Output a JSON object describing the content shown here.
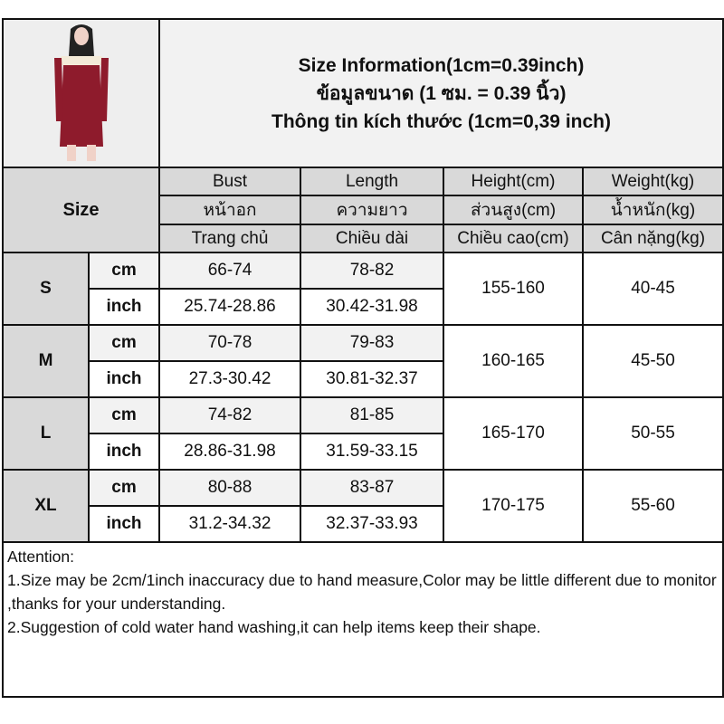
{
  "title_lines": [
    "Size Information(1cm=0.39inch)",
    "ข้อมูลขนาด (1 ซม. = 0.39 นิ้ว)",
    "Thông tin kích thước (1cm=0,39 inch)"
  ],
  "size_label": "Size",
  "columns": [
    {
      "en": "Bust",
      "th": "หน้าอก",
      "vi": "Trang chủ"
    },
    {
      "en": "Length",
      "th": "ความยาว",
      "vi": "Chiều dài"
    },
    {
      "en": "Height(cm)",
      "th": "ส่วนสูง(cm)",
      "vi": "Chiều cao(cm)"
    },
    {
      "en": "Weight(kg)",
      "th": "น้ำหนัก(kg)",
      "vi": "Cân nặng(kg)"
    }
  ],
  "units": {
    "cm": "cm",
    "inch": "inch"
  },
  "sizes": [
    {
      "size": "S",
      "bust_cm": "66-74",
      "length_cm": "78-82",
      "bust_in": "25.74-28.86",
      "length_in": "30.42-31.98",
      "height": "155-160",
      "weight": "40-45"
    },
    {
      "size": "M",
      "bust_cm": "70-78",
      "length_cm": "79-83",
      "bust_in": "27.3-30.42",
      "length_in": "30.81-32.37",
      "height": "160-165",
      "weight": "45-50"
    },
    {
      "size": "L",
      "bust_cm": "74-82",
      "length_cm": "81-85",
      "bust_in": "28.86-31.98",
      "length_in": "31.59-33.15",
      "height": "165-170",
      "weight": "50-55"
    },
    {
      "size": "XL",
      "bust_cm": "80-88",
      "length_cm": "83-87",
      "bust_in": "31.2-34.32",
      "length_in": "32.37-33.93",
      "height": "170-175",
      "weight": "55-60"
    }
  ],
  "attention": {
    "heading": "Attention:",
    "lines": [
      "1.Size may be 2cm/1inch inaccuracy due to hand measure,Color may be little different due to monitor ,thanks for your understanding.",
      "2.Suggestion of cold water hand washing,it can help items keep their shape."
    ]
  },
  "colors": {
    "header_gray": "#d9d9d9",
    "light_gray": "#f2f2f2",
    "dress_red": "#8e1b2c"
  }
}
